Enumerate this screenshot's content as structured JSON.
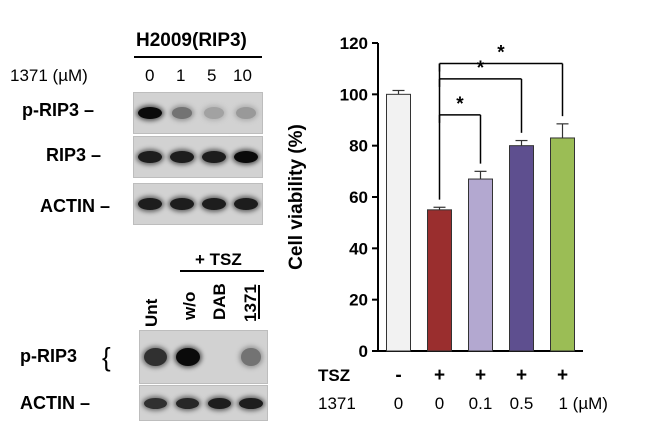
{
  "western_top": {
    "cell_line": "H2009(RIP3)",
    "treatment_label": "1371 (µM)",
    "doses": [
      "0",
      "1",
      "5",
      "10"
    ],
    "rows": [
      {
        "label": "p-RIP3 –",
        "intensity": [
          1.0,
          0.45,
          0.2,
          0.25
        ]
      },
      {
        "label": "RIP3 –",
        "intensity": [
          0.9,
          0.9,
          0.9,
          1.0
        ]
      },
      {
        "label": "ACTIN –",
        "intensity": [
          0.9,
          0.9,
          0.9,
          0.9
        ]
      }
    ]
  },
  "western_bottom": {
    "tsz_label": "+ TSZ",
    "lanes": [
      "Unt",
      "w/o",
      "DAB",
      "1371"
    ],
    "rows": [
      {
        "label": "p-RIP3",
        "intensity": [
          0.8,
          1.0,
          0.0,
          0.45
        ]
      },
      {
        "label": "ACTIN –",
        "intensity": [
          0.8,
          0.85,
          0.9,
          0.9
        ]
      }
    ]
  },
  "chart_data": {
    "type": "bar",
    "ylabel": "Cell viability (%)",
    "ylim": [
      0,
      120
    ],
    "yticks": [
      "0",
      "20",
      "40",
      "60",
      "80",
      "100",
      "120"
    ],
    "values": [
      100,
      55,
      67,
      80,
      83
    ],
    "errors": [
      1.5,
      1,
      3,
      2,
      5.5
    ],
    "colors": [
      "#f2f2f2",
      "#9a2e2e",
      "#b3a8d0",
      "#5e4f8f",
      "#9bbd55"
    ],
    "row_labels": [
      "TSZ",
      "1371"
    ],
    "tsz": [
      "-",
      "+",
      "+",
      "+",
      "+"
    ],
    "dose": [
      "0",
      "0",
      "0.1",
      "0.5",
      "1 (µM)"
    ],
    "significance": [
      "*",
      "*",
      "*"
    ],
    "grid": false,
    "legend": "none"
  }
}
